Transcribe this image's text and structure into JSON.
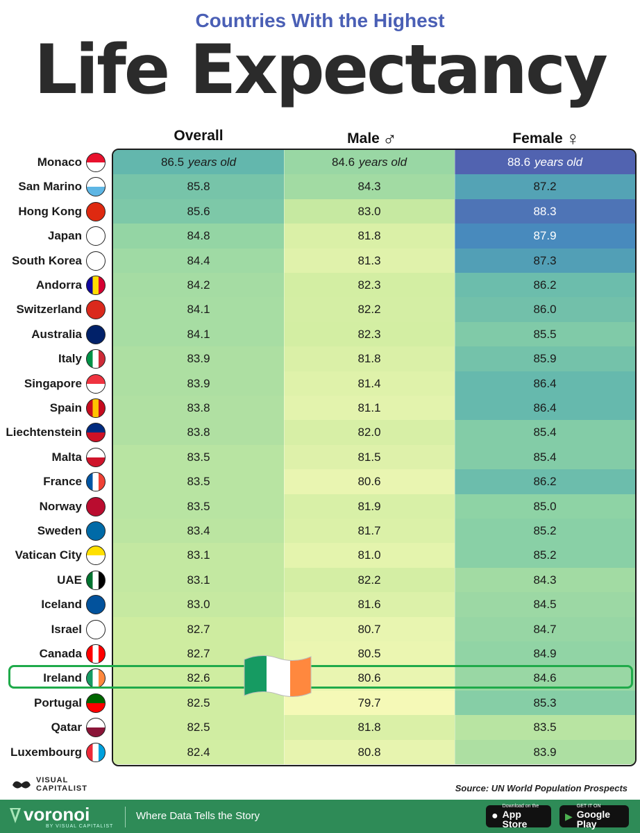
{
  "header": {
    "subtitle": "Countries With the Highest",
    "title": "Life Expectancy"
  },
  "chart_data": {
    "type": "table",
    "title": "Countries With the Highest Life Expectancy",
    "columns": [
      {
        "key": "overall",
        "label": "Overall",
        "symbol": ""
      },
      {
        "key": "male",
        "label": "Male",
        "symbol": "♂"
      },
      {
        "key": "female",
        "label": "Female",
        "symbol": "♀"
      }
    ],
    "unit_suffix": "years old",
    "rows": [
      {
        "country": "Monaco",
        "overall": 86.5,
        "male": 84.6,
        "female": 88.6
      },
      {
        "country": "San Marino",
        "overall": 85.8,
        "male": 84.3,
        "female": 87.2
      },
      {
        "country": "Hong Kong",
        "overall": 85.6,
        "male": 83.0,
        "female": 88.3
      },
      {
        "country": "Japan",
        "overall": 84.8,
        "male": 81.8,
        "female": 87.9
      },
      {
        "country": "South Korea",
        "overall": 84.4,
        "male": 81.3,
        "female": 87.3
      },
      {
        "country": "Andorra",
        "overall": 84.2,
        "male": 82.3,
        "female": 86.2
      },
      {
        "country": "Switzerland",
        "overall": 84.1,
        "male": 82.2,
        "female": 86.0
      },
      {
        "country": "Australia",
        "overall": 84.1,
        "male": 82.3,
        "female": 85.5
      },
      {
        "country": "Italy",
        "overall": 83.9,
        "male": 81.8,
        "female": 85.9
      },
      {
        "country": "Singapore",
        "overall": 83.9,
        "male": 81.4,
        "female": 86.4
      },
      {
        "country": "Spain",
        "overall": 83.8,
        "male": 81.1,
        "female": 86.4
      },
      {
        "country": "Liechtenstein",
        "overall": 83.8,
        "male": 82.0,
        "female": 85.4
      },
      {
        "country": "Malta",
        "overall": 83.5,
        "male": 81.5,
        "female": 85.4
      },
      {
        "country": "France",
        "overall": 83.5,
        "male": 80.6,
        "female": 86.2
      },
      {
        "country": "Norway",
        "overall": 83.5,
        "male": 81.9,
        "female": 85.0
      },
      {
        "country": "Sweden",
        "overall": 83.4,
        "male": 81.7,
        "female": 85.2
      },
      {
        "country": "Vatican City",
        "overall": 83.1,
        "male": 81.0,
        "female": 85.2
      },
      {
        "country": "UAE",
        "overall": 83.1,
        "male": 82.2,
        "female": 84.3
      },
      {
        "country": "Iceland",
        "overall": 83.0,
        "male": 81.6,
        "female": 84.5
      },
      {
        "country": "Israel",
        "overall": 82.7,
        "male": 80.7,
        "female": 84.7
      },
      {
        "country": "Canada",
        "overall": 82.7,
        "male": 80.5,
        "female": 84.9
      },
      {
        "country": "Ireland",
        "overall": 82.6,
        "male": 80.6,
        "female": 84.6
      },
      {
        "country": "Portugal",
        "overall": 82.5,
        "male": 79.7,
        "female": 85.3
      },
      {
        "country": "Qatar",
        "overall": 82.5,
        "male": 81.8,
        "female": 83.5
      },
      {
        "country": "Luxembourg",
        "overall": 82.4,
        "male": 80.8,
        "female": 83.9
      }
    ],
    "highlighted_country": "Ireland",
    "color_scale": {
      "low": "#f7f9b8",
      "mid": "#8fd3a4",
      "high": "#4a4fa8"
    }
  },
  "flags": {
    "Monaco": [
      "#e8112d",
      "#ffffff"
    ],
    "San Marino": [
      "#ffffff",
      "#5eb6e4"
    ],
    "Hong Kong": [
      "#de2910",
      "#de2910"
    ],
    "Japan": [
      "#ffffff",
      "#ffffff"
    ],
    "South Korea": [
      "#ffffff",
      "#ffffff"
    ],
    "Andorra": [
      "#10069f",
      "#fedd00",
      "#d50032"
    ],
    "Switzerland": [
      "#da291c",
      "#da291c"
    ],
    "Australia": [
      "#012169",
      "#012169"
    ],
    "Italy": [
      "#009246",
      "#ffffff",
      "#ce2b37"
    ],
    "Singapore": [
      "#ef3340",
      "#ffffff"
    ],
    "Spain": [
      "#c60b1e",
      "#ffc400",
      "#c60b1e"
    ],
    "Liechtenstein": [
      "#002b7f",
      "#ce1126"
    ],
    "Malta": [
      "#ffffff",
      "#cf142b"
    ],
    "France": [
      "#0055a4",
      "#ffffff",
      "#ef4135"
    ],
    "Norway": [
      "#ba0c2f",
      "#ba0c2f"
    ],
    "Sweden": [
      "#006aa7",
      "#006aa7"
    ],
    "Vatican City": [
      "#ffe000",
      "#ffffff"
    ],
    "UAE": [
      "#00732f",
      "#ffffff",
      "#000000"
    ],
    "Iceland": [
      "#02529c",
      "#02529c"
    ],
    "Israel": [
      "#ffffff",
      "#ffffff"
    ],
    "Canada": [
      "#ff0000",
      "#ffffff",
      "#ff0000"
    ],
    "Ireland": [
      "#169b62",
      "#ffffff",
      "#ff883e"
    ],
    "Portugal": [
      "#006600",
      "#ff0000"
    ],
    "Qatar": [
      "#ffffff",
      "#8a1538"
    ],
    "Luxembourg": [
      "#ed2939",
      "#ffffff",
      "#00a1de"
    ]
  },
  "footer": {
    "brand_line1": "VISUAL",
    "brand_line2": "CAPITALIST",
    "source": "Source: UN World Population Prospects",
    "voronoi": "voronoi",
    "voronoi_sub": "BY VISUAL CAPITALIST",
    "tagline": "Where Data Tells the Story",
    "app_store_small": "Download on the",
    "app_store_big": "App Store",
    "google_small": "GET IT ON",
    "google_big": "Google Play"
  }
}
